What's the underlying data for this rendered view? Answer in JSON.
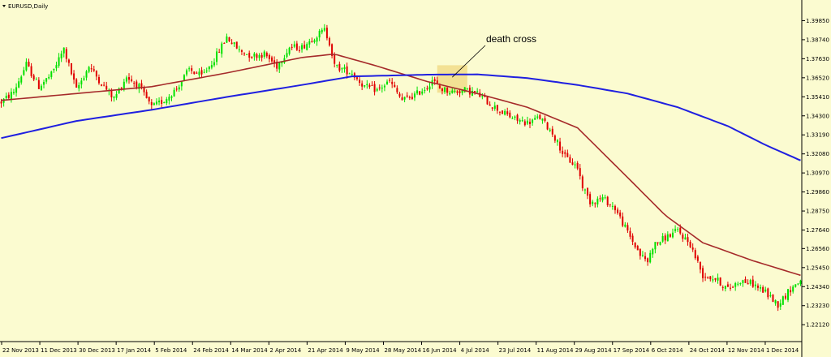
{
  "chart_data": {
    "type": "candlestick",
    "title": "EURUSD,Daily",
    "ylim": [
      1.2123,
      1.4025
    ],
    "y_ticks": [
      "1.39850",
      "1.38740",
      "1.37630",
      "1.36520",
      "1.35410",
      "1.34300",
      "1.33190",
      "1.32080",
      "1.30970",
      "1.29860",
      "1.28750",
      "1.27640",
      "1.26560",
      "1.25450",
      "1.24340",
      "1.23230",
      "1.22120"
    ],
    "x_ticks": [
      "22 Nov 2013",
      "11 Dec 2013",
      "30 Dec 2013",
      "17 Jan 2014",
      "5 Feb 2014",
      "24 Feb 2014",
      "14 Mar 2014",
      "2 Apr 2014",
      "21 Apr 2014",
      "9 May 2014",
      "28 May 2014",
      "16 Jun 2014",
      "4 Jul 2014",
      "23 Jul 2014",
      "11 Aug 2014",
      "29 Aug 2014",
      "17 Sep 2014",
      "6 Oct 2014",
      "24 Oct 2014",
      "12 Nov 2014",
      "1 Dec 2014"
    ],
    "grid": false,
    "colors": {
      "background": "#fbfbd0",
      "bull": "#00e000",
      "bear": "#e00000",
      "ma_fast": "#a52a2a",
      "ma_slow": "#1f1fe0",
      "highlight": "#f0d880",
      "axis": "#000000"
    },
    "price_path": [
      [
        0,
        1.351
      ],
      [
        5,
        1.357
      ],
      [
        10,
        1.373
      ],
      [
        15,
        1.36
      ],
      [
        20,
        1.367
      ],
      [
        25,
        1.382
      ],
      [
        30,
        1.358
      ],
      [
        35,
        1.372
      ],
      [
        40,
        1.362
      ],
      [
        45,
        1.353
      ],
      [
        50,
        1.366
      ],
      [
        55,
        1.36
      ],
      [
        60,
        1.348
      ],
      [
        65,
        1.352
      ],
      [
        70,
        1.359
      ],
      [
        75,
        1.37
      ],
      [
        80,
        1.366
      ],
      [
        85,
        1.376
      ],
      [
        90,
        1.389
      ],
      [
        95,
        1.381
      ],
      [
        100,
        1.378
      ],
      [
        105,
        1.379
      ],
      [
        110,
        1.372
      ],
      [
        115,
        1.383
      ],
      [
        120,
        1.383
      ],
      [
        125,
        1.389
      ],
      [
        129,
        1.393
      ],
      [
        131,
        1.386
      ],
      [
        133,
        1.372
      ],
      [
        140,
        1.368
      ],
      [
        145,
        1.36
      ],
      [
        150,
        1.358
      ],
      [
        155,
        1.363
      ],
      [
        160,
        1.352
      ],
      [
        165,
        1.355
      ],
      [
        170,
        1.36
      ],
      [
        172,
        1.364
      ],
      [
        175,
        1.359
      ],
      [
        180,
        1.357
      ],
      [
        185,
        1.358
      ],
      [
        190,
        1.356
      ],
      [
        195,
        1.35
      ],
      [
        200,
        1.345
      ],
      [
        205,
        1.341
      ],
      [
        210,
        1.339
      ],
      [
        215,
        1.342
      ],
      [
        220,
        1.333
      ],
      [
        225,
        1.319
      ],
      [
        230,
        1.313
      ],
      [
        232,
        1.302
      ],
      [
        235,
        1.293
      ],
      [
        240,
        1.295
      ],
      [
        245,
        1.289
      ],
      [
        250,
        1.275
      ],
      [
        255,
        1.262
      ],
      [
        258,
        1.258
      ],
      [
        260,
        1.267
      ],
      [
        265,
        1.272
      ],
      [
        270,
        1.276
      ],
      [
        275,
        1.268
      ],
      [
        280,
        1.25
      ],
      [
        285,
        1.248
      ],
      [
        290,
        1.242
      ],
      [
        295,
        1.247
      ],
      [
        300,
        1.245
      ],
      [
        305,
        1.24
      ],
      [
        310,
        1.233
      ],
      [
        315,
        1.242
      ],
      [
        319,
        1.247
      ]
    ],
    "sma_fast_path": [
      [
        0,
        1.352
      ],
      [
        30,
        1.356
      ],
      [
        60,
        1.36
      ],
      [
        90,
        1.368
      ],
      [
        120,
        1.377
      ],
      [
        133,
        1.379
      ],
      [
        150,
        1.372
      ],
      [
        170,
        1.363
      ],
      [
        190,
        1.356
      ],
      [
        210,
        1.348
      ],
      [
        230,
        1.336
      ],
      [
        250,
        1.307
      ],
      [
        265,
        1.285
      ],
      [
        280,
        1.269
      ],
      [
        300,
        1.2585
      ],
      [
        319,
        1.25
      ]
    ],
    "sma_slow_path": [
      [
        0,
        1.33
      ],
      [
        30,
        1.34
      ],
      [
        60,
        1.3465
      ],
      [
        90,
        1.354
      ],
      [
        120,
        1.361
      ],
      [
        140,
        1.366
      ],
      [
        170,
        1.367
      ],
      [
        190,
        1.3672
      ],
      [
        210,
        1.365
      ],
      [
        230,
        1.361
      ],
      [
        250,
        1.356
      ],
      [
        270,
        1.348
      ],
      [
        290,
        1.337
      ],
      [
        305,
        1.326
      ],
      [
        319,
        1.317
      ]
    ],
    "annotations": [
      {
        "text": "death cross"
      }
    ]
  }
}
